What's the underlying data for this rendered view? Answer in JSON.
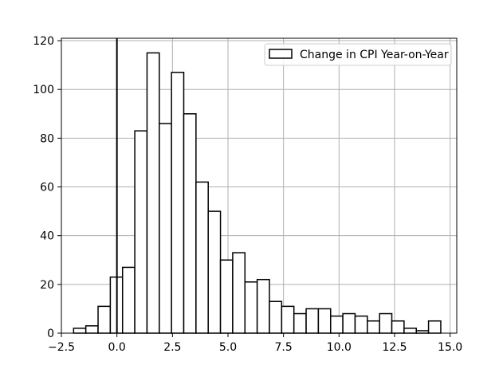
{
  "chart_data": {
    "type": "bar",
    "subtype": "histogram",
    "title": "",
    "xlabel": "",
    "ylabel": "",
    "xlim": [
      -2.5,
      15.3
    ],
    "ylim": [
      0,
      121
    ],
    "xticks": [
      -2.5,
      0.0,
      2.5,
      5.0,
      7.5,
      10.0,
      12.5,
      15.0
    ],
    "xtick_labels": [
      "−2.5",
      "0.0",
      "2.5",
      "5.0",
      "7.5",
      "10.0",
      "12.5",
      "15.0"
    ],
    "yticks": [
      0,
      20,
      40,
      60,
      80,
      100,
      120
    ],
    "ytick_labels": [
      "0",
      "20",
      "40",
      "60",
      "80",
      "100",
      "120"
    ],
    "grid": true,
    "legend": {
      "placement": "top-right",
      "entries": [
        "Change in CPI Year-on-Year"
      ]
    },
    "vline_x": 0.0,
    "bar_fill": "#ffffff",
    "bar_edge": "#000000",
    "bin_width": 0.551,
    "bins_left": [
      -1.95,
      -1.399,
      -0.848,
      -0.297,
      0.254,
      0.805,
      1.356,
      1.907,
      2.458,
      3.009,
      3.56,
      4.111,
      4.662,
      5.213,
      5.764,
      6.315,
      6.866,
      7.417,
      7.968,
      8.519,
      9.07,
      9.621,
      10.172,
      10.723,
      11.274,
      11.825,
      12.376,
      12.927,
      13.478,
      14.029
    ],
    "counts": [
      2,
      3,
      11,
      23,
      27,
      83,
      115,
      86,
      107,
      90,
      62,
      50,
      30,
      33,
      21,
      22,
      13,
      11,
      8,
      10,
      10,
      7,
      8,
      7,
      5,
      8,
      5,
      2,
      1,
      5
    ]
  }
}
